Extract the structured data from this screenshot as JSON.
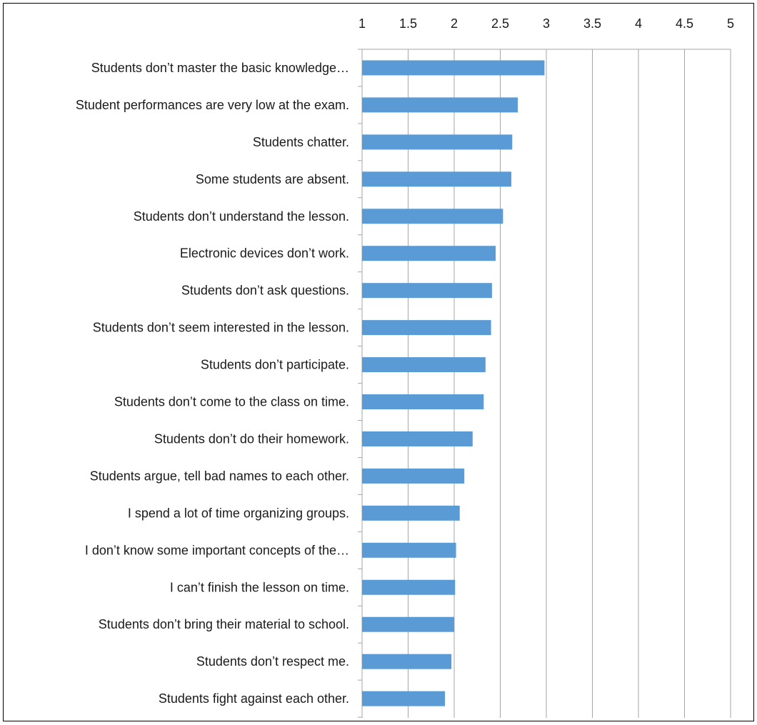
{
  "colors": {
    "bar": "#5b9bd5",
    "grid": "#a6a6a6",
    "axis": "#a6a6a6",
    "text": "#1a1a1a",
    "border": "#000000"
  },
  "chart_data": {
    "type": "bar",
    "orientation": "horizontal",
    "title": "",
    "xlabel": "",
    "ylabel": "",
    "xlim": [
      1,
      5
    ],
    "x_ticks": [
      "1",
      "1.5",
      "2",
      "2.5",
      "3",
      "3.5",
      "4",
      "4.5",
      "5"
    ],
    "x_axis_position": "top",
    "grid": true,
    "legend": "none",
    "categories": [
      "Students don’t master the basic knowledge…",
      "Student performances are very low at the exam.",
      "Students chatter.",
      "Some students are absent.",
      "Students don’t understand the lesson.",
      "Electronic devices don’t work.",
      "Students don’t ask questions.",
      "Students don’t seem interested in the lesson.",
      "Students don’t participate.",
      "Students don’t come to the class on time.",
      "Students don’t do their homework.",
      "Students argue, tell bad names to each other.",
      "I spend a lot of time organizing groups.",
      "I don’t know some important concepts of the…",
      "I can’t finish the lesson on time.",
      "Students don’t bring their material to school.",
      "Students don’t respect me.",
      "Students fight against each other."
    ],
    "values": [
      2.98,
      2.69,
      2.63,
      2.62,
      2.53,
      2.45,
      2.41,
      2.4,
      2.34,
      2.32,
      2.2,
      2.11,
      2.06,
      2.02,
      2.01,
      2.0,
      1.97,
      1.9
    ]
  }
}
